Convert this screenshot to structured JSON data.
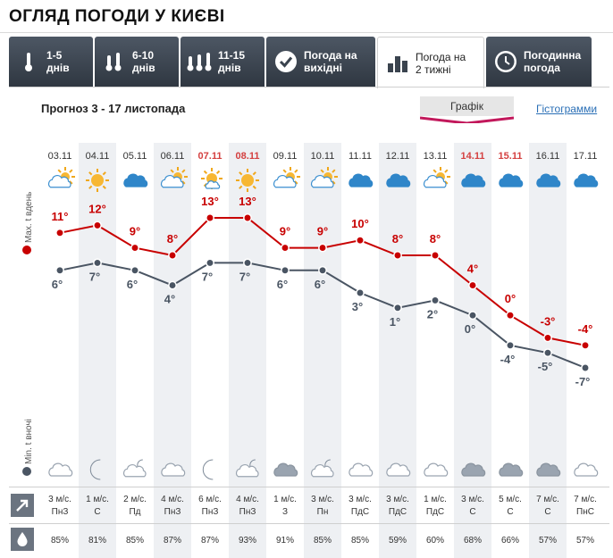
{
  "page": {
    "title": "ОГЛЯД ПОГОДИ У КИЄВІ"
  },
  "tabs": [
    {
      "line1": "1-5",
      "line2": "днів",
      "icon": "thermometer-1-icon",
      "active": false
    },
    {
      "line1": "6-10",
      "line2": "днів",
      "icon": "thermometer-2-icon",
      "active": false
    },
    {
      "line1": "11-15",
      "line2": "днів",
      "icon": "thermometer-3-icon",
      "active": false
    },
    {
      "line1": "Погода на",
      "line2": "вихідні",
      "icon": "check-circle-icon",
      "active": false
    },
    {
      "line1": "Погода на",
      "line2": "2 тижні",
      "icon": "bar-chart-icon",
      "active": true
    },
    {
      "line1": "Погодинна",
      "line2": "погода",
      "icon": "clock-icon",
      "active": false
    }
  ],
  "forecast": {
    "subtitle": "Прогноз 3 - 17 листопада"
  },
  "view_modes": {
    "graph": "Графік",
    "histogram": "Гістограмми"
  },
  "axis_labels": {
    "max": "Max. t вдень",
    "min": "Min. t вночі"
  },
  "colors": {
    "max_line": "#c80000",
    "min_line": "#4a5563",
    "weekend": "#d44040",
    "column_shade": "#eef0f3",
    "accent_pink": "#c2185b"
  },
  "row_icons": {
    "wind": "wind-arrow-icon",
    "humidity": "water-drop-icon"
  },
  "days": [
    {
      "date": "03.11",
      "weekend": false,
      "day_icon": "cloud-sun-icon",
      "night_icon": "cloud-night-icon",
      "wind": "3 м/с.",
      "dir": "ПнЗ",
      "humidity": "85%"
    },
    {
      "date": "04.11",
      "weekend": false,
      "day_icon": "sun-icon",
      "night_icon": "moon-icon",
      "wind": "1 м/с.",
      "dir": "С",
      "humidity": "81%"
    },
    {
      "date": "05.11",
      "weekend": false,
      "day_icon": "cloud-icon",
      "night_icon": "cloud-moon-icon",
      "wind": "2 м/с.",
      "dir": "Пд",
      "humidity": "85%"
    },
    {
      "date": "06.11",
      "weekend": false,
      "day_icon": "cloud-sun-icon",
      "night_icon": "cloud-night-icon",
      "wind": "4 м/с.",
      "dir": "ПнЗ",
      "humidity": "87%"
    },
    {
      "date": "07.11",
      "weekend": true,
      "day_icon": "sun-cloud-icon",
      "night_icon": "moon-icon",
      "wind": "6 м/с.",
      "dir": "ПнЗ",
      "humidity": "87%"
    },
    {
      "date": "08.11",
      "weekend": true,
      "day_icon": "sun-icon",
      "night_icon": "cloud-moon-icon",
      "wind": "4 м/с.",
      "dir": "ПнЗ",
      "humidity": "93%"
    },
    {
      "date": "09.11",
      "weekend": false,
      "day_icon": "cloud-sun-icon",
      "night_icon": "cloud-icon",
      "wind": "1 м/с.",
      "dir": "З",
      "humidity": "91%"
    },
    {
      "date": "10.11",
      "weekend": false,
      "day_icon": "cloud-sun-icon",
      "night_icon": "cloud-moon-icon",
      "wind": "3 м/с.",
      "dir": "Пн",
      "humidity": "85%"
    },
    {
      "date": "11.11",
      "weekend": false,
      "day_icon": "cloud-icon",
      "night_icon": "cloud-night-icon",
      "wind": "3 м/с.",
      "dir": "ПдС",
      "humidity": "85%"
    },
    {
      "date": "12.11",
      "weekend": false,
      "day_icon": "cloud-icon",
      "night_icon": "cloud-night-icon",
      "wind": "3 м/с.",
      "dir": "ПдС",
      "humidity": "59%"
    },
    {
      "date": "13.11",
      "weekend": false,
      "day_icon": "cloud-sun-icon",
      "night_icon": "cloud-night-icon",
      "wind": "1 м/с.",
      "dir": "ПдС",
      "humidity": "60%"
    },
    {
      "date": "14.11",
      "weekend": true,
      "day_icon": "cloud-icon",
      "night_icon": "cloud-icon",
      "wind": "3 м/с.",
      "dir": "С",
      "humidity": "68%"
    },
    {
      "date": "15.11",
      "weekend": true,
      "day_icon": "cloud-icon",
      "night_icon": "cloud-icon",
      "wind": "5 м/с.",
      "dir": "С",
      "humidity": "66%"
    },
    {
      "date": "16.11",
      "weekend": false,
      "day_icon": "cloud-icon",
      "night_icon": "cloud-icon",
      "wind": "7 м/с.",
      "dir": "С",
      "humidity": "57%"
    },
    {
      "date": "17.11",
      "weekend": false,
      "day_icon": "cloud-icon",
      "night_icon": "cloud-night-icon",
      "wind": "7 м/с.",
      "dir": "ПнС",
      "humidity": "57%"
    }
  ],
  "chart_data": {
    "type": "line",
    "x": [
      "03.11",
      "04.11",
      "05.11",
      "06.11",
      "07.11",
      "08.11",
      "09.11",
      "10.11",
      "11.11",
      "12.11",
      "13.11",
      "14.11",
      "15.11",
      "16.11",
      "17.11"
    ],
    "series": [
      {
        "name": "Max. t вдень",
        "values": [
          11,
          12,
          9,
          8,
          13,
          13,
          9,
          9,
          10,
          8,
          8,
          4,
          0,
          -3,
          -4
        ],
        "labels": [
          "11°",
          "12°",
          "9°",
          "8°",
          "13°",
          "13°",
          "9°",
          "9°",
          "10°",
          "8°",
          "8°",
          "4°",
          "0°",
          "-3°",
          "-4°"
        ]
      },
      {
        "name": "Min. t вночі",
        "values": [
          6,
          7,
          6,
          4,
          7,
          7,
          6,
          6,
          3,
          1,
          2,
          0,
          -4,
          -5,
          -7
        ],
        "labels": [
          "6°",
          "7°",
          "6°",
          "4°",
          "7°",
          "7°",
          "6°",
          "6°",
          "3°",
          "1°",
          "2°",
          "0°",
          "-4°",
          "-5°",
          "-7°"
        ]
      }
    ],
    "ylim": [
      -7,
      13
    ]
  }
}
